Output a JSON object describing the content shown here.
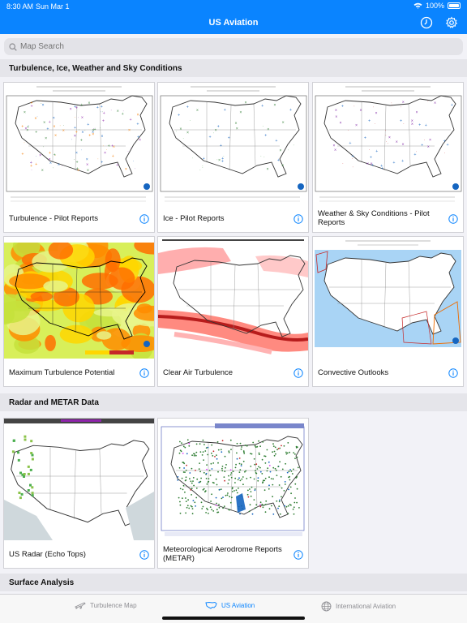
{
  "status": {
    "time": "8:30 AM",
    "date": "Sun Mar 1",
    "battery": "100%"
  },
  "nav": {
    "title": "US Aviation",
    "left_icon": "clock-icon",
    "right_icon": "gear-icon"
  },
  "search": {
    "placeholder": "Map Search"
  },
  "sections": [
    {
      "title": "Turbulence, Ice, Weather and Sky Conditions"
    },
    {
      "title": "Radar and METAR Data"
    },
    {
      "title": "Surface Analysis"
    }
  ],
  "cards": [
    {
      "label": "Turbulence - Pilot Reports",
      "map": "pirep"
    },
    {
      "label": "Ice - Pilot Reports",
      "map": "pirep"
    },
    {
      "label": "Weather & Sky Conditions - Pilot Reports",
      "map": "pirep"
    },
    {
      "label": "Maximum Turbulence Potential",
      "map": "turb"
    },
    {
      "label": "Clear Air Turbulence",
      "map": "cat"
    },
    {
      "label": "Convective Outlooks",
      "map": "conv"
    },
    {
      "label": "US Radar (Echo Tops)",
      "map": "radar"
    },
    {
      "label": "Meteorological Aerodrome Reports (METAR)",
      "map": "metar"
    }
  ],
  "tabs": [
    {
      "label": "Turbulence Map",
      "icon": "plane-icon",
      "active": false
    },
    {
      "label": "US Aviation",
      "icon": "us-map-icon",
      "active": true
    },
    {
      "label": "International Aviation",
      "icon": "globe-icon",
      "active": false
    }
  ],
  "colors": {
    "accent": "#0a84ff"
  }
}
